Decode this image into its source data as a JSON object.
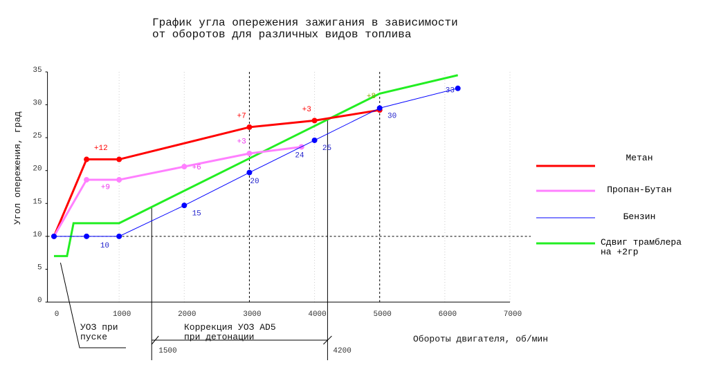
{
  "chart_data": {
    "type": "line",
    "title": "График угла опережения зажигания в зависимости\nот оборотов для различных видов топлива",
    "x_label": "Обороты двигателя, об/мин",
    "y_label": "Угол опережения, град",
    "xlim": [
      -100,
      7000
    ],
    "xticks": [
      0,
      1000,
      2000,
      3000,
      4000,
      5000,
      6000,
      7000
    ],
    "ylim": [
      0,
      35
    ],
    "yticks": [
      0,
      5,
      10,
      15,
      20,
      25,
      30,
      35
    ],
    "grid": true,
    "series": [
      {
        "name": "Метан",
        "color": "#ff0000",
        "line_width": 3,
        "markers": true,
        "x": [
          0,
          500,
          1000,
          3000,
          4000,
          5000
        ],
        "values": [
          10,
          21.7,
          21.7,
          26.6,
          27.6,
          29.2
        ]
      },
      {
        "name": "Пропан-Бутан",
        "color": "#ff80ff",
        "line_width": 3,
        "markers": true,
        "x": [
          0,
          500,
          1000,
          2000,
          3000,
          3800
        ],
        "values": [
          10,
          18.6,
          18.6,
          20.6,
          22.6,
          23.6
        ]
      },
      {
        "name": "Бензин",
        "color": "#0000ff",
        "line_width": 1,
        "markers": true,
        "x": [
          0,
          500,
          1000,
          2000,
          3000,
          4000,
          5000,
          6200
        ],
        "values": [
          10,
          10,
          10,
          14.7,
          19.7,
          24.6,
          29.5,
          32.5
        ]
      },
      {
        "name": "Сдвиг трамблера\nна +2гр",
        "color": "#22ee22",
        "line_width": 3,
        "markers": false,
        "x": [
          0,
          200,
          300,
          1000,
          5000,
          6200
        ],
        "values": [
          7,
          7,
          12,
          12,
          31.7,
          34.5
        ]
      }
    ],
    "annotations": [
      {
        "text": "+12",
        "x": 720,
        "y": 23.1,
        "color": "#ff0000"
      },
      {
        "text": "+7",
        "x": 2880,
        "y": 28.0,
        "color": "#ff0000"
      },
      {
        "text": "+3",
        "x": 3880,
        "y": 29.0,
        "color": "#ff0000"
      },
      {
        "text": "+8",
        "x": 4870,
        "y": 31.0,
        "color": "#88aa00"
      },
      {
        "text": "+9",
        "x": 790,
        "y": 17.2,
        "color": "#ee33ee"
      },
      {
        "text": "+6",
        "x": 2190,
        "y": 20.2,
        "color": "#ee33ee"
      },
      {
        "text": "+3",
        "x": 2880,
        "y": 24.1,
        "color": "#ee33ee"
      },
      {
        "text": "10",
        "x": 780,
        "y": 8.3,
        "color": "#2222cc"
      },
      {
        "text": "15",
        "x": 2190,
        "y": 13.2,
        "color": "#2222cc"
      },
      {
        "text": "20",
        "x": 3080,
        "y": 18.1,
        "color": "#2222cc"
      },
      {
        "text": "24",
        "x": 3770,
        "y": 22.0,
        "color": "#2222cc"
      },
      {
        "text": "25",
        "x": 4190,
        "y": 23.1,
        "color": "#2222cc"
      },
      {
        "text": "30",
        "x": 5190,
        "y": 28.0,
        "color": "#2222cc"
      },
      {
        "text": "33",
        "x": 6080,
        "y": 31.9,
        "color": "#2222cc"
      }
    ],
    "hlines_dashed": [
      10
    ],
    "vlines_dashed": [
      3000,
      5000
    ],
    "vlines_solid": [
      1500,
      4200
    ],
    "start_note": "УОЗ при\nпуске",
    "correction_note": "Коррекция УОЗ AD5\nпри детонации"
  }
}
